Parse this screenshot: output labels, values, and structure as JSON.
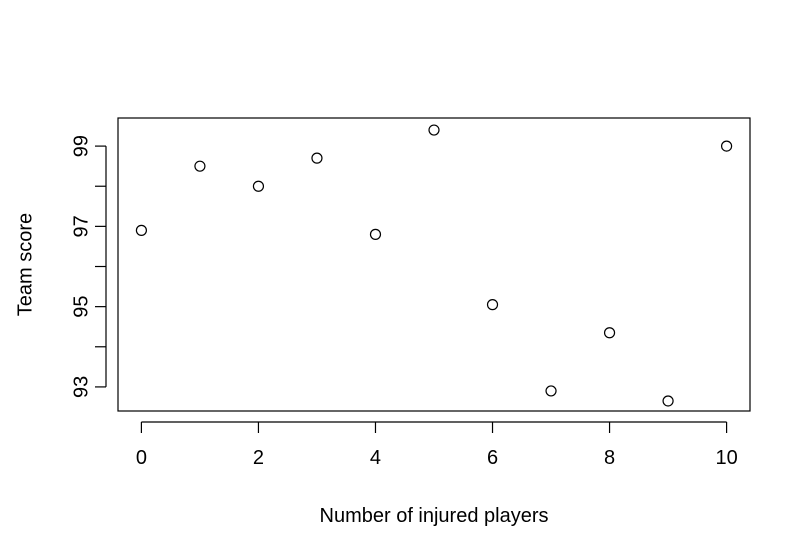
{
  "chart_data": {
    "type": "scatter",
    "title": "",
    "xlabel": "Number of injured players",
    "ylabel": "Team score",
    "x": [
      0,
      1,
      2,
      3,
      4,
      5,
      6,
      7,
      8,
      9,
      10
    ],
    "y": [
      96.9,
      98.5,
      98.0,
      98.7,
      96.8,
      99.4,
      95.05,
      92.9,
      94.35,
      92.65,
      99.0
    ],
    "xlim": [
      -0.4,
      10.4
    ],
    "ylim": [
      92.4,
      99.7
    ],
    "xticks": [
      0,
      2,
      4,
      6,
      8,
      10
    ],
    "xtick_labels": [
      "0",
      "2",
      "4",
      "6",
      "8",
      "10"
    ],
    "yticks": [
      93,
      94,
      95,
      96,
      97,
      98,
      99
    ],
    "ytick_labels": [
      "93",
      "",
      "95",
      "",
      "97",
      "",
      "99"
    ],
    "marker": "open-circle",
    "grid": false,
    "legend": "none",
    "colors": {
      "point_stroke": "#000000",
      "axis": "#000000",
      "background": "#ffffff"
    }
  }
}
